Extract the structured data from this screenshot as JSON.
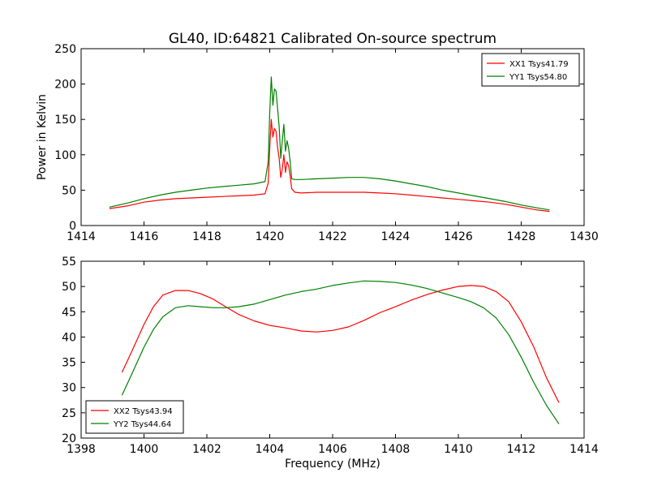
{
  "title": "GL40, ID:64821 Calibrated On-source spectrum",
  "chart_data": [
    {
      "type": "line",
      "title": "GL40, ID:64821 Calibrated On-source spectrum",
      "xlabel": "",
      "ylabel": "Power in Kelvin",
      "xlim": [
        1414,
        1430
      ],
      "ylim": [
        0,
        250
      ],
      "xticks": [
        1414,
        1416,
        1418,
        1420,
        1422,
        1424,
        1426,
        1428,
        1430
      ],
      "yticks": [
        0,
        50,
        100,
        150,
        200,
        250
      ],
      "grid": false,
      "legend_position": "top-right",
      "series": [
        {
          "name": "XX1 Tsys41.79",
          "color": "#ff0000",
          "x": [
            1414.9,
            1415.5,
            1416.0,
            1416.5,
            1417.0,
            1417.5,
            1418.0,
            1418.5,
            1419.0,
            1419.5,
            1419.85,
            1419.95,
            1420.0,
            1420.05,
            1420.1,
            1420.15,
            1420.2,
            1420.25,
            1420.3,
            1420.35,
            1420.4,
            1420.45,
            1420.5,
            1420.55,
            1420.6,
            1420.65,
            1420.7,
            1420.8,
            1421.0,
            1421.5,
            1422.0,
            1422.5,
            1423.0,
            1423.5,
            1424.0,
            1424.5,
            1425.0,
            1425.5,
            1426.0,
            1426.5,
            1427.0,
            1427.5,
            1428.0,
            1428.5,
            1428.9
          ],
          "y": [
            24,
            28,
            33,
            36,
            38,
            39,
            40,
            41,
            42,
            43,
            45,
            60,
            110,
            150,
            125,
            137,
            133,
            110,
            95,
            68,
            80,
            100,
            75,
            90,
            85,
            70,
            52,
            47,
            46,
            47,
            47,
            47,
            47,
            46,
            45,
            43,
            41,
            39,
            37,
            35,
            33,
            30,
            26,
            22,
            20
          ]
        },
        {
          "name": "YY1 Tsys54.80",
          "color": "#008000",
          "x": [
            1414.9,
            1415.5,
            1416.0,
            1416.5,
            1417.0,
            1417.5,
            1418.0,
            1418.5,
            1419.0,
            1419.5,
            1419.85,
            1419.95,
            1420.0,
            1420.05,
            1420.1,
            1420.15,
            1420.2,
            1420.25,
            1420.3,
            1420.35,
            1420.4,
            1420.45,
            1420.5,
            1420.55,
            1420.6,
            1420.65,
            1420.7,
            1420.8,
            1421.0,
            1421.5,
            1422.0,
            1422.5,
            1423.0,
            1423.5,
            1424.0,
            1424.5,
            1425.0,
            1425.5,
            1426.0,
            1426.5,
            1427.0,
            1427.5,
            1428.0,
            1428.5,
            1428.9
          ],
          "y": [
            26,
            32,
            38,
            43,
            47,
            50,
            53,
            55,
            57,
            59,
            62,
            90,
            160,
            210,
            170,
            193,
            190,
            165,
            140,
            95,
            120,
            143,
            105,
            120,
            110,
            90,
            66,
            65,
            65,
            66,
            67,
            68,
            68,
            66,
            63,
            59,
            55,
            50,
            46,
            42,
            38,
            34,
            29,
            25,
            22
          ]
        }
      ]
    },
    {
      "type": "line",
      "title": "",
      "xlabel": "Frequency (MHz)",
      "ylabel": "",
      "xlim": [
        1398,
        1414
      ],
      "ylim": [
        20,
        55
      ],
      "xticks": [
        1398,
        1400,
        1402,
        1404,
        1406,
        1408,
        1410,
        1412,
        1414
      ],
      "yticks": [
        20,
        25,
        30,
        35,
        40,
        45,
        50,
        55
      ],
      "grid": false,
      "legend_position": "bottom-left",
      "series": [
        {
          "name": "XX2 Tsys43.94",
          "color": "#ff0000",
          "x": [
            1399.3,
            1399.6,
            1400.0,
            1400.3,
            1400.6,
            1401.0,
            1401.4,
            1401.8,
            1402.2,
            1402.6,
            1403.0,
            1403.5,
            1404.0,
            1404.5,
            1405.0,
            1405.5,
            1406.0,
            1406.5,
            1407.0,
            1407.5,
            1408.0,
            1408.5,
            1409.0,
            1409.5,
            1410.0,
            1410.4,
            1410.8,
            1411.2,
            1411.6,
            1412.0,
            1412.4,
            1412.8,
            1413.2
          ],
          "y": [
            33,
            37,
            42.5,
            46,
            48.3,
            49.2,
            49.2,
            48.6,
            47.5,
            46,
            44.5,
            43.2,
            42.3,
            41.8,
            41.2,
            41,
            41.3,
            42,
            43.3,
            44.8,
            46,
            47.3,
            48.4,
            49.3,
            50,
            50.2,
            50,
            49,
            47,
            43,
            38,
            32,
            27
          ]
        },
        {
          "name": "YY2 Tsys44.64",
          "color": "#008000",
          "x": [
            1399.3,
            1399.6,
            1400.0,
            1400.3,
            1400.6,
            1401.0,
            1401.4,
            1401.8,
            1402.2,
            1402.6,
            1403.0,
            1403.5,
            1404.0,
            1404.5,
            1405.0,
            1405.5,
            1406.0,
            1406.5,
            1407.0,
            1407.5,
            1408.0,
            1408.5,
            1409.0,
            1409.5,
            1410.0,
            1410.4,
            1410.8,
            1411.2,
            1411.6,
            1412.0,
            1412.4,
            1412.8,
            1413.2
          ],
          "y": [
            28.5,
            32.5,
            38,
            41.5,
            44,
            45.8,
            46.2,
            46,
            45.8,
            45.8,
            46,
            46.5,
            47.4,
            48.3,
            49,
            49.5,
            50.2,
            50.7,
            51.1,
            51,
            50.8,
            50.3,
            49.6,
            48.7,
            47.8,
            47,
            45.8,
            43.8,
            40.5,
            36,
            31,
            26.5,
            22.8
          ]
        }
      ]
    }
  ]
}
